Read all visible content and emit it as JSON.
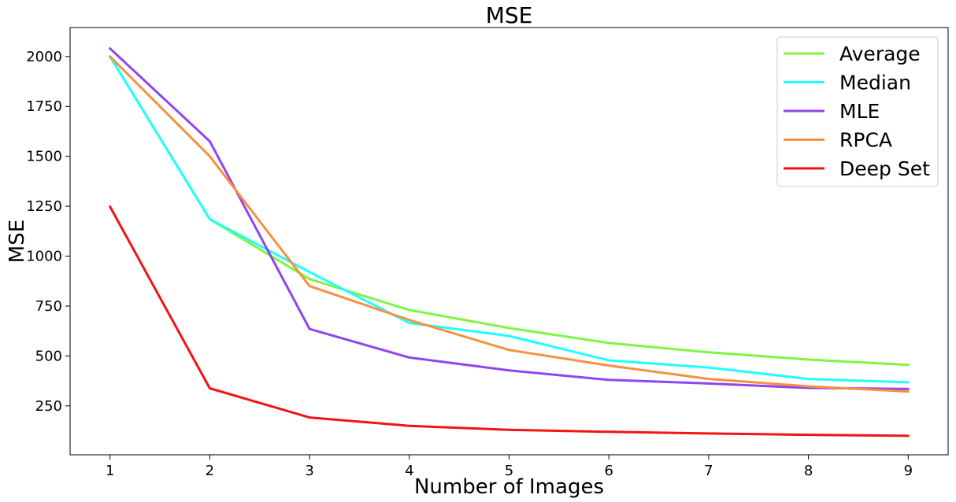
{
  "chart_data": {
    "type": "line",
    "title": "MSE",
    "xlabel": "Number of Images",
    "ylabel": "MSE",
    "x": [
      1,
      2,
      3,
      4,
      5,
      6,
      7,
      8,
      9
    ],
    "xlim": [
      0.6,
      9.4
    ],
    "ylim": [
      5,
      2145
    ],
    "xticks": [
      1,
      2,
      3,
      4,
      5,
      6,
      7,
      8,
      9
    ],
    "yticks": [
      250,
      500,
      750,
      1000,
      1250,
      1500,
      1750,
      2000
    ],
    "grid": false,
    "legend_position": "top-right",
    "series": [
      {
        "name": "Average",
        "color": "#7ef542",
        "values": [
          2000,
          1185,
          885,
          730,
          640,
          565,
          518,
          482,
          455
        ]
      },
      {
        "name": "Median",
        "color": "#1fffff",
        "values": [
          2000,
          1185,
          920,
          665,
          600,
          478,
          442,
          385,
          368
        ]
      },
      {
        "name": "MLE",
        "color": "#8f45f0",
        "values": [
          2040,
          1575,
          635,
          492,
          428,
          380,
          362,
          340,
          335
        ]
      },
      {
        "name": "RPCA",
        "color": "#f5913f",
        "values": [
          2000,
          1500,
          850,
          680,
          530,
          452,
          385,
          348,
          322
        ]
      },
      {
        "name": "Deep Set",
        "color": "#f21313",
        "values": [
          1248,
          338,
          192,
          150,
          130,
          120,
          112,
          105,
          100
        ]
      }
    ]
  }
}
